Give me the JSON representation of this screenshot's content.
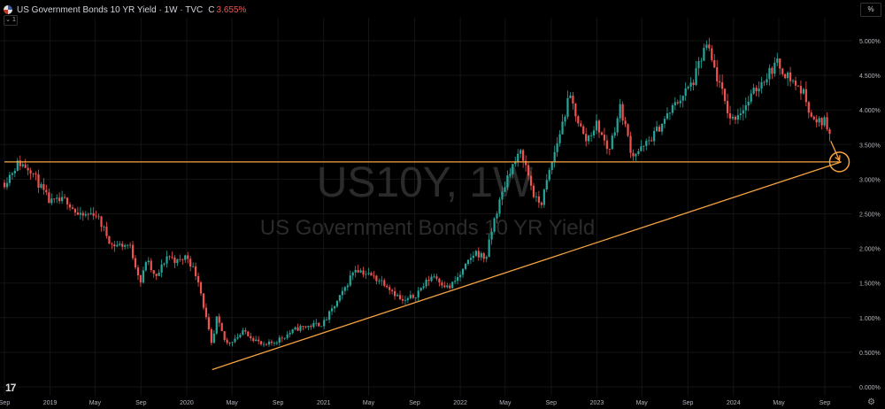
{
  "header": {
    "title": "US Government Bonds 10 YR Yield · 1W · TVC",
    "close_label": "C",
    "close_value": "3.655%"
  },
  "controls": {
    "collapse_label": "1",
    "scale_button": "%"
  },
  "watermark": {
    "symbol": "US10Y, 1W",
    "name": "US Government Bonds 10 YR Yield"
  },
  "colors": {
    "background": "#000000",
    "up": "#26a69a",
    "down": "#ef5350",
    "drawing": "#f7a340",
    "text": "#d1d4dc"
  },
  "chart_data": {
    "type": "candlestick",
    "timeframe": "1W",
    "ylim": [
      0,
      5.2
    ],
    "y_ticks": [
      "0.000%",
      "0.500%",
      "1.000%",
      "1.500%",
      "2.000%",
      "2.500%",
      "3.000%",
      "3.500%",
      "4.000%",
      "4.500%",
      "5.000%"
    ],
    "y_tick_values": [
      0,
      0.5,
      1.0,
      1.5,
      2.0,
      2.5,
      3.0,
      3.5,
      4.0,
      4.5,
      5.0
    ],
    "x_range": [
      "2018-09-01",
      "2024-10-15"
    ],
    "x_ticks": [
      {
        "label": "Sep",
        "date": "2018-09-01"
      },
      {
        "label": "2019",
        "date": "2019-01-01"
      },
      {
        "label": "May",
        "date": "2019-05-01"
      },
      {
        "label": "Sep",
        "date": "2019-09-01"
      },
      {
        "label": "2020",
        "date": "2020-01-01"
      },
      {
        "label": "May",
        "date": "2020-05-01"
      },
      {
        "label": "Sep",
        "date": "2020-09-01"
      },
      {
        "label": "2021",
        "date": "2021-01-01"
      },
      {
        "label": "May",
        "date": "2021-05-01"
      },
      {
        "label": "Sep",
        "date": "2021-09-01"
      },
      {
        "label": "2022",
        "date": "2022-01-01"
      },
      {
        "label": "May",
        "date": "2022-05-01"
      },
      {
        "label": "Sep",
        "date": "2022-09-01"
      },
      {
        "label": "2023",
        "date": "2023-01-01"
      },
      {
        "label": "May",
        "date": "2023-05-01"
      },
      {
        "label": "Sep",
        "date": "2023-09-01"
      },
      {
        "label": "2024",
        "date": "2024-01-01"
      },
      {
        "label": "May",
        "date": "2024-05-01"
      },
      {
        "label": "Sep",
        "date": "2024-09-01"
      }
    ],
    "close_path": [
      [
        "2018-09-01",
        2.95
      ],
      [
        "2018-10-08",
        3.24
      ],
      [
        "2018-11-10",
        3.15
      ],
      [
        "2018-12-10",
        2.85
      ],
      [
        "2019-01-01",
        2.66
      ],
      [
        "2019-02-15",
        2.7
      ],
      [
        "2019-03-20",
        2.45
      ],
      [
        "2019-05-01",
        2.52
      ],
      [
        "2019-06-15",
        2.05
      ],
      [
        "2019-08-01",
        2.05
      ],
      [
        "2019-09-01",
        1.5
      ],
      [
        "2019-09-15",
        1.85
      ],
      [
        "2019-10-10",
        1.55
      ],
      [
        "2019-11-10",
        1.9
      ],
      [
        "2019-12-10",
        1.8
      ],
      [
        "2020-01-01",
        1.9
      ],
      [
        "2020-02-01",
        1.55
      ],
      [
        "2020-03-09",
        0.55
      ],
      [
        "2020-03-20",
        1.0
      ],
      [
        "2020-04-15",
        0.62
      ],
      [
        "2020-06-05",
        0.8
      ],
      [
        "2020-07-25",
        0.58
      ],
      [
        "2020-09-01",
        0.68
      ],
      [
        "2020-10-25",
        0.85
      ],
      [
        "2021-01-01",
        0.92
      ],
      [
        "2021-02-20",
        1.35
      ],
      [
        "2021-03-25",
        1.72
      ],
      [
        "2021-05-01",
        1.62
      ],
      [
        "2021-06-15",
        1.5
      ],
      [
        "2021-08-01",
        1.22
      ],
      [
        "2021-09-01",
        1.32
      ],
      [
        "2021-10-20",
        1.62
      ],
      [
        "2021-12-01",
        1.42
      ],
      [
        "2022-01-01",
        1.62
      ],
      [
        "2022-02-10",
        1.95
      ],
      [
        "2022-03-10",
        1.85
      ],
      [
        "2022-04-01",
        2.4
      ],
      [
        "2022-05-10",
        3.1
      ],
      [
        "2022-06-14",
        3.4
      ],
      [
        "2022-07-20",
        2.7
      ],
      [
        "2022-08-05",
        2.65
      ],
      [
        "2022-09-01",
        3.2
      ],
      [
        "2022-10-20",
        4.2
      ],
      [
        "2022-12-01",
        3.55
      ],
      [
        "2023-01-01",
        3.8
      ],
      [
        "2023-02-01",
        3.4
      ],
      [
        "2023-03-05",
        4.05
      ],
      [
        "2023-04-05",
        3.35
      ],
      [
        "2023-05-05",
        3.45
      ],
      [
        "2023-06-10",
        3.7
      ],
      [
        "2023-08-01",
        4.1
      ],
      [
        "2023-09-15",
        4.4
      ],
      [
        "2023-10-20",
        4.95
      ],
      [
        "2023-11-10",
        4.6
      ],
      [
        "2023-12-25",
        3.85
      ],
      [
        "2024-02-01",
        4.05
      ],
      [
        "2024-03-01",
        4.3
      ],
      [
        "2024-04-25",
        4.68
      ],
      [
        "2024-06-01",
        4.45
      ],
      [
        "2024-07-05",
        4.25
      ],
      [
        "2024-08-05",
        3.8
      ],
      [
        "2024-09-01",
        3.85
      ],
      [
        "2024-09-16",
        3.66
      ]
    ],
    "last_close": 3.655,
    "annotations": {
      "horizontal_line": {
        "y": 3.25,
        "from": "2018-09-01",
        "to": "2024-10-15"
      },
      "trendline": {
        "from": [
          "2020-03-09",
          0.25
        ],
        "to": [
          "2024-10-15",
          3.25
        ]
      },
      "arrow": {
        "from": [
          "2024-09-17",
          3.55
        ],
        "to": [
          "2024-10-10",
          3.27
        ]
      },
      "target_circle": {
        "date": "2024-10-10",
        "y": 3.25
      }
    }
  }
}
